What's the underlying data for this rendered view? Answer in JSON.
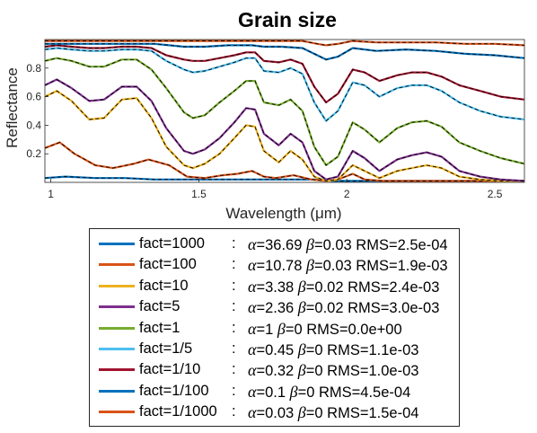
{
  "chart_data": {
    "type": "line",
    "title": "Grain size",
    "xlabel": "Wavelength (μm)",
    "ylabel": "Reflectance",
    "xlim": [
      0.98,
      2.6
    ],
    "ylim": [
      0.0,
      1.0
    ],
    "xticks": [
      1,
      1.5,
      2,
      2.5
    ],
    "yticks": [
      0.2,
      0.4,
      0.6,
      0.8
    ],
    "grid": false,
    "legend_position": "below",
    "series": [
      {
        "name": "fact=1000",
        "alpha": "36.69",
        "beta": "0.03",
        "rms": "2.5e-04",
        "color": "#0072BD",
        "x": [
          0.98,
          1.05,
          1.15,
          1.25,
          1.35,
          1.45,
          1.55,
          1.65,
          1.75,
          1.85,
          1.92,
          1.95,
          2.0,
          2.1,
          2.2,
          2.3,
          2.4,
          2.5,
          2.6
        ],
        "y": [
          0.03,
          0.04,
          0.03,
          0.03,
          0.02,
          0.02,
          0.02,
          0.02,
          0.02,
          0.02,
          0.02,
          0.01,
          0.01,
          0.01,
          0.01,
          0.01,
          0.01,
          0.01,
          0.01
        ]
      },
      {
        "name": "fact=100",
        "alpha": "10.78",
        "beta": "0.03",
        "rms": "1.9e-03",
        "color": "#D95319",
        "x": [
          0.98,
          1.03,
          1.08,
          1.15,
          1.21,
          1.28,
          1.33,
          1.4,
          1.46,
          1.52,
          1.58,
          1.63,
          1.68,
          1.72,
          1.76,
          1.82,
          1.88,
          1.93,
          1.97,
          2.02,
          2.06,
          2.12,
          2.18,
          2.25,
          2.32,
          2.4,
          2.5,
          2.6
        ],
        "y": [
          0.24,
          0.28,
          0.2,
          0.12,
          0.1,
          0.13,
          0.16,
          0.12,
          0.04,
          0.03,
          0.05,
          0.06,
          0.08,
          0.04,
          0.03,
          0.05,
          0.02,
          0.01,
          0.02,
          0.06,
          0.02,
          0.01,
          0.01,
          0.01,
          0.01,
          0.01,
          0.01,
          0.01
        ]
      },
      {
        "name": "fact=10",
        "alpha": "3.38",
        "beta": "0.02",
        "rms": "2.4e-03",
        "color": "#EDB120",
        "x": [
          0.98,
          1.02,
          1.07,
          1.13,
          1.18,
          1.24,
          1.29,
          1.34,
          1.39,
          1.45,
          1.48,
          1.52,
          1.57,
          1.62,
          1.66,
          1.69,
          1.72,
          1.77,
          1.81,
          1.85,
          1.89,
          1.93,
          1.97,
          2.02,
          2.06,
          2.11,
          2.17,
          2.22,
          2.27,
          2.32,
          2.38,
          2.45,
          2.52,
          2.6
        ],
        "y": [
          0.6,
          0.64,
          0.57,
          0.44,
          0.45,
          0.58,
          0.59,
          0.45,
          0.25,
          0.12,
          0.1,
          0.13,
          0.2,
          0.31,
          0.4,
          0.39,
          0.22,
          0.14,
          0.22,
          0.16,
          0.04,
          0.01,
          0.02,
          0.12,
          0.08,
          0.03,
          0.08,
          0.1,
          0.12,
          0.1,
          0.04,
          0.02,
          0.01,
          0.01
        ]
      },
      {
        "name": "fact=5",
        "alpha": "2.36",
        "beta": "0.02",
        "rms": "3.0e-03",
        "color": "#7E2F8E",
        "x": [
          0.98,
          1.02,
          1.07,
          1.13,
          1.18,
          1.24,
          1.29,
          1.34,
          1.39,
          1.45,
          1.48,
          1.52,
          1.57,
          1.62,
          1.66,
          1.69,
          1.72,
          1.77,
          1.81,
          1.85,
          1.89,
          1.93,
          1.97,
          2.02,
          2.06,
          2.11,
          2.17,
          2.22,
          2.27,
          2.32,
          2.38,
          2.45,
          2.52,
          2.6
        ],
        "y": [
          0.68,
          0.72,
          0.66,
          0.57,
          0.58,
          0.67,
          0.67,
          0.57,
          0.38,
          0.22,
          0.2,
          0.23,
          0.31,
          0.42,
          0.52,
          0.51,
          0.34,
          0.26,
          0.34,
          0.28,
          0.08,
          0.02,
          0.04,
          0.22,
          0.17,
          0.08,
          0.16,
          0.19,
          0.21,
          0.18,
          0.08,
          0.04,
          0.02,
          0.01
        ]
      },
      {
        "name": "fact=1",
        "alpha": "1",
        "beta": "0",
        "rms": "0.0e+00",
        "color": "#77AC30",
        "x": [
          0.98,
          1.02,
          1.07,
          1.13,
          1.18,
          1.24,
          1.29,
          1.34,
          1.39,
          1.45,
          1.48,
          1.52,
          1.57,
          1.62,
          1.66,
          1.69,
          1.72,
          1.77,
          1.81,
          1.85,
          1.89,
          1.93,
          1.97,
          2.02,
          2.06,
          2.11,
          2.17,
          2.22,
          2.27,
          2.32,
          2.38,
          2.45,
          2.52,
          2.6
        ],
        "y": [
          0.85,
          0.87,
          0.85,
          0.81,
          0.81,
          0.86,
          0.86,
          0.79,
          0.66,
          0.49,
          0.45,
          0.47,
          0.56,
          0.64,
          0.71,
          0.71,
          0.56,
          0.54,
          0.58,
          0.5,
          0.25,
          0.12,
          0.18,
          0.42,
          0.37,
          0.28,
          0.38,
          0.42,
          0.43,
          0.39,
          0.28,
          0.22,
          0.17,
          0.13
        ]
      },
      {
        "name": "fact=1/5",
        "alpha": "0.45",
        "beta": "0",
        "rms": "1.1e-03",
        "color": "#4DBEEE",
        "x": [
          0.98,
          1.02,
          1.07,
          1.13,
          1.18,
          1.24,
          1.29,
          1.34,
          1.39,
          1.45,
          1.48,
          1.52,
          1.57,
          1.62,
          1.66,
          1.69,
          1.72,
          1.77,
          1.81,
          1.85,
          1.89,
          1.93,
          1.97,
          2.02,
          2.06,
          2.11,
          2.17,
          2.22,
          2.27,
          2.32,
          2.38,
          2.45,
          2.52,
          2.6
        ],
        "y": [
          0.93,
          0.94,
          0.93,
          0.92,
          0.92,
          0.93,
          0.93,
          0.92,
          0.85,
          0.79,
          0.77,
          0.78,
          0.81,
          0.84,
          0.87,
          0.87,
          0.78,
          0.77,
          0.8,
          0.76,
          0.56,
          0.43,
          0.5,
          0.7,
          0.68,
          0.6,
          0.66,
          0.68,
          0.68,
          0.64,
          0.56,
          0.5,
          0.46,
          0.44
        ]
      },
      {
        "name": "fact=1/10",
        "alpha": "0.32",
        "beta": "0",
        "rms": "1.0e-03",
        "color": "#A2142F",
        "x": [
          0.98,
          1.02,
          1.07,
          1.13,
          1.18,
          1.24,
          1.29,
          1.34,
          1.39,
          1.45,
          1.48,
          1.52,
          1.57,
          1.62,
          1.66,
          1.69,
          1.72,
          1.77,
          1.81,
          1.85,
          1.89,
          1.93,
          1.97,
          2.02,
          2.06,
          2.11,
          2.17,
          2.22,
          2.27,
          2.32,
          2.38,
          2.45,
          2.52,
          2.6
        ],
        "y": [
          0.95,
          0.96,
          0.95,
          0.94,
          0.94,
          0.95,
          0.95,
          0.94,
          0.89,
          0.86,
          0.85,
          0.85,
          0.87,
          0.89,
          0.91,
          0.91,
          0.85,
          0.84,
          0.86,
          0.83,
          0.67,
          0.56,
          0.62,
          0.79,
          0.77,
          0.71,
          0.75,
          0.77,
          0.77,
          0.74,
          0.68,
          0.64,
          0.6,
          0.58
        ]
      },
      {
        "name": "fact=1/100",
        "alpha": "0.1",
        "beta": "0",
        "rms": "4.5e-04",
        "color": "#0072BD",
        "x": [
          0.98,
          1.05,
          1.15,
          1.25,
          1.35,
          1.4,
          1.45,
          1.52,
          1.6,
          1.68,
          1.72,
          1.78,
          1.85,
          1.9,
          1.93,
          1.97,
          2.02,
          2.1,
          2.2,
          2.3,
          2.4,
          2.5,
          2.6
        ],
        "y": [
          0.97,
          0.97,
          0.97,
          0.97,
          0.97,
          0.96,
          0.95,
          0.95,
          0.96,
          0.96,
          0.95,
          0.95,
          0.94,
          0.89,
          0.86,
          0.88,
          0.94,
          0.92,
          0.93,
          0.92,
          0.9,
          0.89,
          0.87
        ]
      },
      {
        "name": "fact=1/1000",
        "alpha": "0.03",
        "beta": "0",
        "rms": "1.5e-04",
        "color": "#D95319",
        "x": [
          0.98,
          1.05,
          1.15,
          1.25,
          1.35,
          1.45,
          1.55,
          1.65,
          1.75,
          1.85,
          1.9,
          1.93,
          1.97,
          2.02,
          2.1,
          2.2,
          2.3,
          2.4,
          2.5,
          2.6
        ],
        "y": [
          0.99,
          0.99,
          0.99,
          0.99,
          0.99,
          0.99,
          0.99,
          0.99,
          0.99,
          0.99,
          0.97,
          0.96,
          0.97,
          0.99,
          0.98,
          0.98,
          0.98,
          0.97,
          0.97,
          0.96
        ]
      }
    ]
  }
}
